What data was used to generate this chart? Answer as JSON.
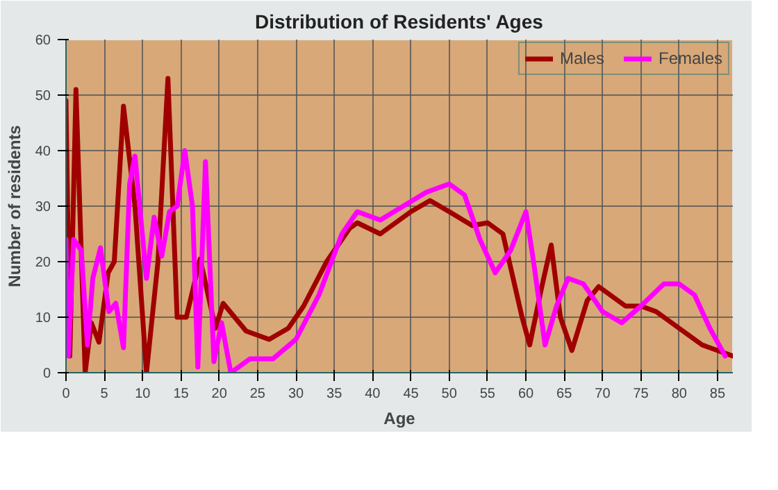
{
  "chart_data": {
    "type": "line",
    "title": "Distribution of Residents' Ages",
    "xlabel": "Age",
    "ylabel": "Number of residents",
    "xlim": [
      0,
      87
    ],
    "ylim": [
      0,
      60
    ],
    "xticks": [
      0,
      5,
      10,
      15,
      20,
      25,
      30,
      35,
      40,
      45,
      50,
      55,
      60,
      65,
      70,
      75,
      80,
      85
    ],
    "yticks": [
      0,
      10,
      20,
      30,
      40,
      50,
      60
    ],
    "grid": true,
    "legend": "top right",
    "line_style": "solid",
    "marker": "none",
    "series": [
      {
        "name": "Males",
        "color": "#a00000",
        "x": [
          0,
          0.5,
          1.3,
          2.5,
          3.3,
          4.3,
          5.5,
          6.3,
          7.5,
          9,
          10.5,
          12,
          13.3,
          14.5,
          15.7,
          17.5,
          19.5,
          20.5,
          23.5,
          26.5,
          29,
          31,
          34,
          37,
          38,
          41,
          45,
          47.5,
          50,
          53,
          55,
          57,
          59.5,
          60.5,
          62,
          63.3,
          64.5,
          66,
          68,
          69.5,
          71,
          73,
          75,
          77,
          79,
          81,
          83,
          85,
          87
        ],
        "values": [
          49,
          3,
          51,
          0,
          9,
          5.5,
          18,
          20,
          48,
          30,
          0,
          20,
          53,
          10,
          10,
          20.5,
          8,
          12.5,
          7.5,
          6,
          8,
          12,
          20,
          26,
          27,
          25,
          29,
          31,
          29,
          26.5,
          27,
          25,
          10,
          5,
          15,
          23,
          10,
          4,
          13,
          15.5,
          14,
          12,
          12,
          11,
          9,
          7,
          5,
          4,
          3
        ]
      },
      {
        "name": "Females",
        "color": "#ff00ff",
        "x": [
          0,
          0.3,
          1,
          2,
          2.8,
          3.5,
          4.5,
          5.6,
          6.5,
          7.5,
          8.3,
          9,
          10.5,
          11.5,
          12.5,
          13.5,
          14.5,
          15.5,
          16.5,
          17.2,
          18.2,
          19.3,
          20.3,
          21.5,
          24,
          27,
          30,
          33,
          36,
          38,
          41,
          44,
          47,
          50,
          52,
          54,
          56,
          58,
          60,
          61,
          62.5,
          64,
          65.5,
          67.5,
          70,
          72.5,
          75,
          78,
          80,
          82,
          84,
          86
        ],
        "values": [
          24,
          3,
          24,
          22,
          5,
          17,
          22.5,
          11,
          12.5,
          4.5,
          34,
          39,
          17,
          28,
          21,
          29,
          30,
          40,
          30,
          1,
          38,
          2,
          9,
          0,
          2.5,
          2.5,
          6,
          14,
          25,
          29,
          27.5,
          30,
          32.5,
          34,
          32,
          24,
          18,
          22,
          29,
          20,
          5,
          12,
          17,
          16,
          11,
          9,
          12,
          16,
          16,
          14,
          8,
          3
        ]
      }
    ]
  }
}
